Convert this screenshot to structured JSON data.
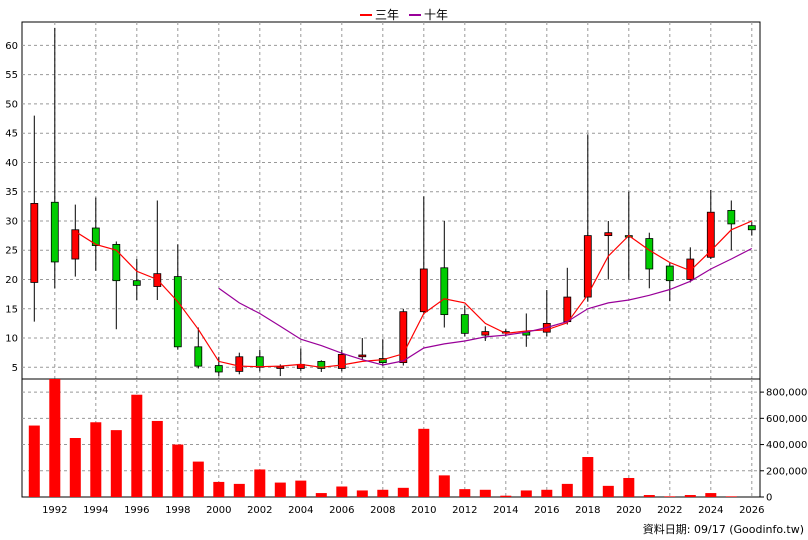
{
  "legend": [
    {
      "label": "三年",
      "color": "#ff0000"
    },
    {
      "label": "十年",
      "color": "#990099"
    }
  ],
  "footer": "資料日期: 09/17  (Goodinfo.tw)",
  "chart_data": [
    {
      "type": "candlestick",
      "ylim": [
        3,
        64
      ],
      "yticks": [
        5,
        10,
        15,
        20,
        25,
        30,
        35,
        40,
        45,
        50,
        55,
        60
      ],
      "xticks": [
        "1992",
        "1994",
        "1996",
        "1998",
        "2000",
        "2002",
        "2004",
        "2006",
        "2008",
        "2010",
        "2012",
        "2014",
        "2016",
        "2018",
        "2020",
        "2022",
        "2024",
        "2026"
      ],
      "grid": true,
      "colors": {
        "up": "#ff0000",
        "down": "#00cc00",
        "ma3": "#ff0000",
        "ma10": "#990099"
      },
      "candles": [
        {
          "year": 1991,
          "open": 19.5,
          "close": 33,
          "high": 48,
          "low": 12.8
        },
        {
          "year": 1992,
          "open": 33.2,
          "close": 23,
          "high": 63,
          "low": 18.5
        },
        {
          "year": 1993,
          "open": 23.5,
          "close": 28.5,
          "high": 32.8,
          "low": 20.5
        },
        {
          "year": 1994,
          "open": 28.8,
          "close": 25.8,
          "high": 34,
          "low": 21.5
        },
        {
          "year": 1995,
          "open": 26,
          "close": 19.8,
          "high": 26.5,
          "low": 11.5
        },
        {
          "year": 1996,
          "open": 19.8,
          "close": 19,
          "high": 23.5,
          "low": 16.5
        },
        {
          "year": 1997,
          "open": 18.8,
          "close": 21,
          "high": 33.5,
          "low": 16.5
        },
        {
          "year": 1998,
          "open": 20.5,
          "close": 8.5,
          "high": 26,
          "low": 8
        },
        {
          "year": 1999,
          "open": 8.5,
          "close": 5.2,
          "high": 11.8,
          "low": 4.8
        },
        {
          "year": 2000,
          "open": 5.3,
          "close": 4.2,
          "high": 6.8,
          "low": 3.5
        },
        {
          "year": 2001,
          "open": 4.3,
          "close": 6.8,
          "high": 7.5,
          "low": 3.8
        },
        {
          "year": 2002,
          "open": 6.8,
          "close": 5,
          "high": 8,
          "low": 4.3
        },
        {
          "year": 2003,
          "open": 4.8,
          "close": 5.1,
          "high": 5.5,
          "low": 3.5
        },
        {
          "year": 2004,
          "open": 4.8,
          "close": 5.5,
          "high": 8.2,
          "low": 4.4
        },
        {
          "year": 2005,
          "open": 6,
          "close": 4.8,
          "high": 6.2,
          "low": 4.2
        },
        {
          "year": 2006,
          "open": 4.8,
          "close": 7.2,
          "high": 8,
          "low": 4.3
        },
        {
          "year": 2007,
          "open": 6.8,
          "close": 7.1,
          "high": 10,
          "low": 6.3
        },
        {
          "year": 2008,
          "open": 6.5,
          "close": 5.8,
          "high": 9.8,
          "low": 5.2
        },
        {
          "year": 2009,
          "open": 5.8,
          "close": 14.5,
          "high": 15,
          "low": 5.3
        },
        {
          "year": 2010,
          "open": 14.5,
          "close": 21.8,
          "high": 34.2,
          "low": 14
        },
        {
          "year": 2011,
          "open": 22,
          "close": 14,
          "high": 30,
          "low": 11.8
        },
        {
          "year": 2012,
          "open": 14,
          "close": 10.8,
          "high": 15.5,
          "low": 10.3
        },
        {
          "year": 2013,
          "open": 10.5,
          "close": 11.1,
          "high": 12,
          "low": 9.5
        },
        {
          "year": 2014,
          "open": 10.9,
          "close": 11.1,
          "high": 11.5,
          "low": 10.3
        },
        {
          "year": 2015,
          "open": 11,
          "close": 10.5,
          "high": 14.2,
          "low": 8.5
        },
        {
          "year": 2016,
          "open": 11,
          "close": 12.5,
          "high": 18.2,
          "low": 10.3
        },
        {
          "year": 2017,
          "open": 12.8,
          "close": 17,
          "high": 22,
          "low": 12.3
        },
        {
          "year": 2018,
          "open": 17,
          "close": 27.5,
          "high": 44.8,
          "low": 16.2
        },
        {
          "year": 2019,
          "open": 27.5,
          "close": 28,
          "high": 30,
          "low": 20
        },
        {
          "year": 2020,
          "open": 27.5,
          "close": 27.3,
          "high": 35,
          "low": 20
        },
        {
          "year": 2021,
          "open": 27,
          "close": 21.8,
          "high": 28,
          "low": 18.5
        },
        {
          "year": 2022,
          "open": 22.3,
          "close": 19.8,
          "high": 22.8,
          "low": 16.3
        },
        {
          "year": 2023,
          "open": 20,
          "close": 23.5,
          "high": 25.5,
          "low": 19.5
        },
        {
          "year": 2024,
          "open": 23.8,
          "close": 31.5,
          "high": 35.3,
          "low": 23.5
        },
        {
          "year": 2025,
          "open": 31.8,
          "close": 29.5,
          "high": 33.5,
          "low": 25
        },
        {
          "year": 2026,
          "open": 29.2,
          "close": 28.5,
          "high": 29.8,
          "low": 27.5
        }
      ],
      "series": [
        {
          "name": "三年",
          "x": [
            1993,
            1994,
            1995,
            1996,
            1997,
            1998,
            1999,
            2000,
            2001,
            2002,
            2003,
            2004,
            2005,
            2006,
            2007,
            2008,
            2009,
            2010,
            2011,
            2012,
            2013,
            2014,
            2015,
            2016,
            2017,
            2018,
            2019,
            2020,
            2021,
            2022,
            2023,
            2024,
            2025,
            2026
          ],
          "values": [
            28.2,
            26,
            25,
            21.4,
            20,
            16.2,
            11.5,
            6,
            5.2,
            5.1,
            5.2,
            5.5,
            5,
            5.4,
            6,
            6.3,
            7.3,
            14.2,
            16.7,
            16,
            12.5,
            10.8,
            11.2,
            11.4,
            12.6,
            17.4,
            24,
            27.5,
            25,
            22.9,
            21.5,
            24.9,
            28.5,
            30
          ]
        },
        {
          "name": "十年",
          "x": [
            2000,
            2001,
            2002,
            2003,
            2004,
            2005,
            2006,
            2007,
            2008,
            2009,
            2010,
            2011,
            2012,
            2013,
            2014,
            2015,
            2016,
            2017,
            2018,
            2019,
            2020,
            2021,
            2022,
            2023,
            2024,
            2025,
            2026
          ],
          "values": [
            18.5,
            16,
            14.2,
            12,
            9.8,
            8.7,
            7.4,
            6.3,
            5.4,
            6.1,
            8.3,
            9,
            9.5,
            10.2,
            10.5,
            11,
            11.8,
            12.8,
            15,
            16,
            16.5,
            17.3,
            18.3,
            19.7,
            21.8,
            23.5,
            25.3
          ]
        }
      ]
    },
    {
      "type": "bar",
      "ylim": [
        0,
        900000
      ],
      "yticks": [
        0,
        200000,
        400000,
        600000,
        800000
      ],
      "ytick_labels": [
        "0",
        "200,000",
        "400,000",
        "600,000",
        "800,000"
      ],
      "color": "#ff0000",
      "x": [
        1991,
        1992,
        1993,
        1994,
        1995,
        1996,
        1997,
        1998,
        1999,
        2000,
        2001,
        2002,
        2003,
        2004,
        2005,
        2006,
        2007,
        2008,
        2009,
        2010,
        2011,
        2012,
        2013,
        2014,
        2015,
        2016,
        2017,
        2018,
        2019,
        2020,
        2021,
        2022,
        2023,
        2024,
        2025,
        2026
      ],
      "values": [
        545000,
        955000,
        450000,
        570000,
        510000,
        780000,
        580000,
        400000,
        270000,
        115000,
        100000,
        210000,
        110000,
        125000,
        30000,
        80000,
        50000,
        55000,
        70000,
        520000,
        165000,
        60000,
        55000,
        10000,
        50000,
        55000,
        100000,
        305000,
        85000,
        145000,
        15000,
        5000,
        15000,
        30000,
        5000,
        0
      ]
    }
  ]
}
